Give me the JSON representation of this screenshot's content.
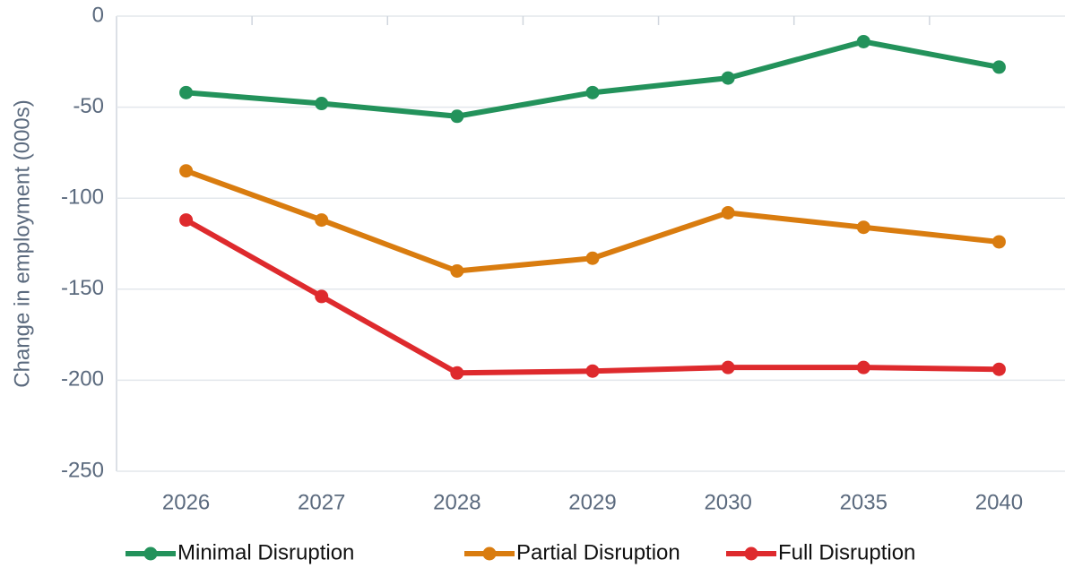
{
  "chart_data": {
    "type": "line",
    "y_label": "Change in employment (000s)",
    "categories": [
      "2026",
      "2027",
      "2028",
      "2029",
      "2030",
      "2035",
      "2040"
    ],
    "series": [
      {
        "name": "Minimal Disruption",
        "color": "#23925b",
        "values": [
          -42,
          -48,
          -55,
          -42,
          -34,
          -14,
          -28
        ]
      },
      {
        "name": "Partial Disruption",
        "color": "#d97c0f",
        "values": [
          -85,
          -112,
          -140,
          -133,
          -108,
          -116,
          -124
        ]
      },
      {
        "name": "Full Disruption",
        "color": "#de2a2d",
        "values": [
          -112,
          -154,
          -196,
          -195,
          -193,
          -193,
          -194
        ]
      }
    ],
    "ylim": [
      -250,
      0
    ],
    "yticks": [
      0,
      -50,
      -100,
      -150,
      -200,
      -250
    ],
    "grid": true,
    "legend": "bottom"
  }
}
